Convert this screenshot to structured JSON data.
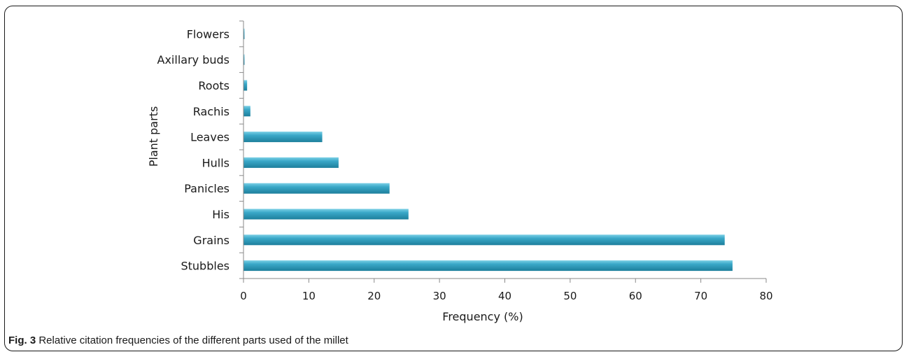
{
  "chart_data": {
    "type": "bar",
    "orientation": "horizontal",
    "categories": [
      "Stubbles",
      "Grains",
      "His",
      "Panicles",
      "Hulls",
      "Leaves",
      "Rachis",
      "Roots",
      "Axillary buds",
      "Flowers"
    ],
    "values": [
      74.8,
      73.6,
      25.2,
      22.3,
      14.5,
      12.0,
      1.0,
      0.5,
      0.1,
      0.1
    ],
    "xlabel": "Frequency (%)",
    "ylabel": "Plant parts",
    "xlim": [
      0,
      80
    ],
    "xticks": [
      0,
      10,
      20,
      30,
      40,
      50,
      60,
      70,
      80
    ],
    "bar_color": "#3aa8c8",
    "grid": false,
    "legend": "none"
  },
  "caption": {
    "prefix": "Fig. 3",
    "text": " Relative citation frequencies of the different parts used of the millet"
  }
}
